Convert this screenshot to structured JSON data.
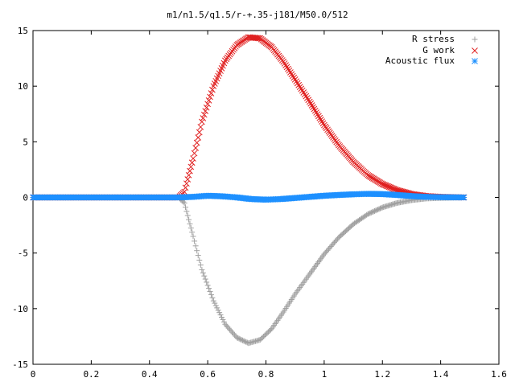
{
  "chart_data": {
    "type": "scatter",
    "title": "m1/n1.5/q1.5/r-+.35-j181/M50.0/512",
    "xlabel": "",
    "ylabel": "",
    "xlim": [
      0,
      1.6
    ],
    "ylim": [
      -15,
      15
    ],
    "xticks": [
      "0",
      "0.2",
      "0.4",
      "0.6",
      "0.8",
      "1",
      "1.2",
      "1.4",
      "1.6"
    ],
    "yticks": [
      "15",
      "10",
      "5",
      "0",
      "-5",
      "-10",
      "-15"
    ],
    "xtick_values": [
      0,
      0.2,
      0.4,
      0.6,
      0.8,
      1.0,
      1.2,
      1.4,
      1.6
    ],
    "ytick_values": [
      15,
      10,
      5,
      0,
      -5,
      -10,
      -15
    ],
    "grid": false,
    "legend_position": "top-right",
    "series": [
      {
        "name": "R stress",
        "marker": "plus",
        "color": "#a0a0a0",
        "points": [
          [
            0.0,
            0
          ],
          [
            0.1,
            0
          ],
          [
            0.2,
            0
          ],
          [
            0.3,
            0
          ],
          [
            0.4,
            0
          ],
          [
            0.5,
            0
          ],
          [
            0.52,
            -0.5
          ],
          [
            0.55,
            -3.5
          ],
          [
            0.58,
            -6.5
          ],
          [
            0.62,
            -9.3
          ],
          [
            0.66,
            -11.4
          ],
          [
            0.7,
            -12.6
          ],
          [
            0.74,
            -13.1
          ],
          [
            0.78,
            -12.8
          ],
          [
            0.82,
            -11.8
          ],
          [
            0.86,
            -10.3
          ],
          [
            0.9,
            -8.7
          ],
          [
            0.95,
            -6.9
          ],
          [
            1.0,
            -5.1
          ],
          [
            1.05,
            -3.6
          ],
          [
            1.1,
            -2.4
          ],
          [
            1.15,
            -1.5
          ],
          [
            1.2,
            -0.9
          ],
          [
            1.25,
            -0.5
          ],
          [
            1.3,
            -0.25
          ],
          [
            1.35,
            -0.1
          ],
          [
            1.4,
            -0.05
          ],
          [
            1.48,
            0
          ]
        ]
      },
      {
        "name": "G work",
        "marker": "cross",
        "color": "#e02020",
        "points": [
          [
            0.0,
            0
          ],
          [
            0.1,
            0
          ],
          [
            0.2,
            0
          ],
          [
            0.3,
            0
          ],
          [
            0.4,
            0
          ],
          [
            0.5,
            0
          ],
          [
            0.52,
            0.5
          ],
          [
            0.55,
            3.5
          ],
          [
            0.58,
            6.8
          ],
          [
            0.62,
            10.0
          ],
          [
            0.66,
            12.3
          ],
          [
            0.7,
            13.7
          ],
          [
            0.74,
            14.4
          ],
          [
            0.78,
            14.3
          ],
          [
            0.82,
            13.5
          ],
          [
            0.86,
            12.2
          ],
          [
            0.9,
            10.6
          ],
          [
            0.95,
            8.6
          ],
          [
            1.0,
            6.5
          ],
          [
            1.05,
            4.7
          ],
          [
            1.1,
            3.2
          ],
          [
            1.15,
            2.0
          ],
          [
            1.2,
            1.2
          ],
          [
            1.25,
            0.65
          ],
          [
            1.3,
            0.3
          ],
          [
            1.35,
            0.12
          ],
          [
            1.4,
            0.05
          ],
          [
            1.48,
            0
          ]
        ]
      },
      {
        "name": "Acoustic flux",
        "marker": "star",
        "color": "#1e90ff",
        "points": [
          [
            0.0,
            0
          ],
          [
            0.1,
            0
          ],
          [
            0.2,
            0
          ],
          [
            0.3,
            0
          ],
          [
            0.4,
            0
          ],
          [
            0.5,
            0
          ],
          [
            0.55,
            0.05
          ],
          [
            0.6,
            0.15
          ],
          [
            0.65,
            0.1
          ],
          [
            0.7,
            0.0
          ],
          [
            0.75,
            -0.15
          ],
          [
            0.8,
            -0.2
          ],
          [
            0.85,
            -0.15
          ],
          [
            0.9,
            -0.05
          ],
          [
            0.95,
            0.05
          ],
          [
            1.0,
            0.15
          ],
          [
            1.05,
            0.22
          ],
          [
            1.1,
            0.28
          ],
          [
            1.15,
            0.32
          ],
          [
            1.2,
            0.3
          ],
          [
            1.25,
            0.22
          ],
          [
            1.3,
            0.12
          ],
          [
            1.35,
            0.05
          ],
          [
            1.4,
            0.02
          ],
          [
            1.48,
            0
          ]
        ]
      }
    ]
  }
}
